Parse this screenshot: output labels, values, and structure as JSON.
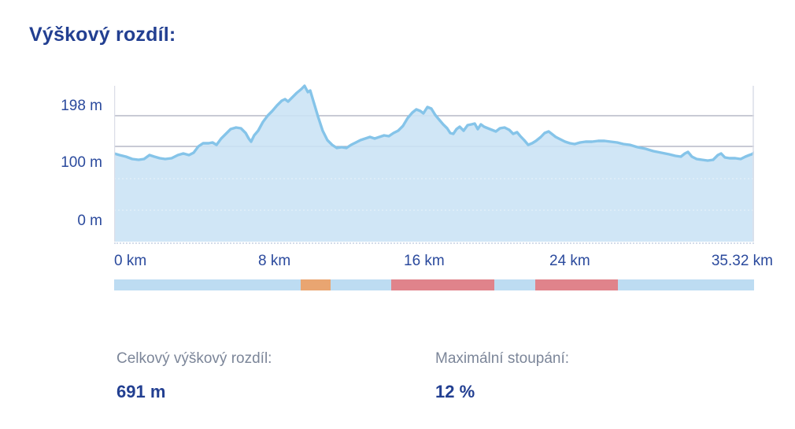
{
  "page": {
    "title": "Výškový rozdíl:"
  },
  "chart_data": {
    "type": "area",
    "title": "Výškový rozdíl:",
    "x_unit": "km",
    "y_unit": "m",
    "x_range_km": [
      0,
      35.32
    ],
    "y_range_m": [
      0,
      198
    ],
    "grid": "horizontal lines on",
    "legend": "none",
    "y_axis_labels": [
      {
        "text": "198 m",
        "value_m": 198
      },
      {
        "text": "100 m",
        "value_m": 100
      },
      {
        "text": "0 m",
        "value_m": 0
      }
    ],
    "x_axis_labels": [
      {
        "text": "0 km",
        "value_km": 0
      },
      {
        "text": "8 km",
        "value_km": 8
      },
      {
        "text": "16 km",
        "value_km": 16
      },
      {
        "text": "24 km",
        "value_km": 24
      },
      {
        "text": "35.32 km",
        "value_km": 35.32
      }
    ],
    "profile_points_km_m": [
      [
        0,
        112
      ],
      [
        0.3,
        110
      ],
      [
        0.65,
        108
      ],
      [
        1,
        105
      ],
      [
        1.35,
        104
      ],
      [
        1.65,
        105
      ],
      [
        1.95,
        110
      ],
      [
        2.22,
        108
      ],
      [
        2.52,
        106
      ],
      [
        2.82,
        105
      ],
      [
        3.17,
        106
      ],
      [
        3.52,
        110
      ],
      [
        3.82,
        112
      ],
      [
        4.13,
        110
      ],
      [
        4.39,
        113
      ],
      [
        4.65,
        121
      ],
      [
        4.91,
        125
      ],
      [
        5.21,
        125
      ],
      [
        5.43,
        126
      ],
      [
        5.65,
        123
      ],
      [
        5.91,
        131
      ],
      [
        6.17,
        137
      ],
      [
        6.43,
        143
      ],
      [
        6.73,
        145
      ],
      [
        7,
        144
      ],
      [
        7.26,
        138
      ],
      [
        7.43,
        131
      ],
      [
        7.56,
        127
      ],
      [
        7.73,
        135
      ],
      [
        7.95,
        141
      ],
      [
        8.21,
        152
      ],
      [
        8.47,
        160
      ],
      [
        8.73,
        166
      ],
      [
        8.99,
        173
      ],
      [
        9.25,
        179
      ],
      [
        9.43,
        181
      ],
      [
        9.6,
        178
      ],
      [
        9.82,
        183
      ],
      [
        10.08,
        189
      ],
      [
        10.34,
        194
      ],
      [
        10.51,
        198
      ],
      [
        10.69,
        190
      ],
      [
        10.82,
        192
      ],
      [
        11.03,
        176
      ],
      [
        11.25,
        159
      ],
      [
        11.51,
        141
      ],
      [
        11.77,
        129
      ],
      [
        12.03,
        123
      ],
      [
        12.29,
        119
      ],
      [
        12.56,
        120
      ],
      [
        12.82,
        119
      ],
      [
        13.08,
        123
      ],
      [
        13.34,
        126
      ],
      [
        13.6,
        129
      ],
      [
        13.86,
        131
      ],
      [
        14.12,
        133
      ],
      [
        14.38,
        131
      ],
      [
        14.64,
        133
      ],
      [
        14.9,
        135
      ],
      [
        15.16,
        134
      ],
      [
        15.42,
        138
      ],
      [
        15.68,
        141
      ],
      [
        15.94,
        147
      ],
      [
        16.2,
        157
      ],
      [
        16.46,
        164
      ],
      [
        16.68,
        168
      ],
      [
        16.9,
        166
      ],
      [
        17.07,
        163
      ],
      [
        17.29,
        171
      ],
      [
        17.51,
        169
      ],
      [
        17.72,
        161
      ],
      [
        17.94,
        155
      ],
      [
        18.16,
        149
      ],
      [
        18.38,
        144
      ],
      [
        18.55,
        138
      ],
      [
        18.72,
        137
      ],
      [
        18.9,
        143
      ],
      [
        19.07,
        146
      ],
      [
        19.29,
        141
      ],
      [
        19.51,
        148
      ],
      [
        19.72,
        149
      ],
      [
        19.9,
        150
      ],
      [
        20.07,
        143
      ],
      [
        20.24,
        149
      ],
      [
        20.42,
        146
      ],
      [
        20.63,
        144
      ],
      [
        20.85,
        142
      ],
      [
        21.07,
        140
      ],
      [
        21.29,
        144
      ],
      [
        21.55,
        145
      ],
      [
        21.81,
        142
      ],
      [
        22.02,
        137
      ],
      [
        22.24,
        139
      ],
      [
        22.42,
        134
      ],
      [
        22.63,
        129
      ],
      [
        22.85,
        123
      ],
      [
        23.07,
        125
      ],
      [
        23.28,
        128
      ],
      [
        23.55,
        133
      ],
      [
        23.76,
        138
      ],
      [
        23.98,
        140
      ],
      [
        24.15,
        137
      ],
      [
        24.37,
        133
      ],
      [
        24.63,
        130
      ],
      [
        24.89,
        127
      ],
      [
        25.16,
        125
      ],
      [
        25.42,
        124
      ],
      [
        25.72,
        126
      ],
      [
        26.02,
        127
      ],
      [
        26.37,
        127
      ],
      [
        26.72,
        128
      ],
      [
        27.07,
        128
      ],
      [
        27.41,
        127
      ],
      [
        27.76,
        126
      ],
      [
        28.11,
        124
      ],
      [
        28.46,
        123
      ],
      [
        28.89,
        120
      ],
      [
        29.33,
        118
      ],
      [
        29.76,
        115
      ],
      [
        30.2,
        113
      ],
      [
        30.63,
        111
      ],
      [
        30.98,
        109
      ],
      [
        31.28,
        108
      ],
      [
        31.5,
        112
      ],
      [
        31.67,
        114
      ],
      [
        31.89,
        108
      ],
      [
        32.15,
        105
      ],
      [
        32.45,
        104
      ],
      [
        32.76,
        103
      ],
      [
        33.06,
        104
      ],
      [
        33.32,
        110
      ],
      [
        33.5,
        112
      ],
      [
        33.71,
        107
      ],
      [
        33.97,
        106
      ],
      [
        34.28,
        106
      ],
      [
        34.58,
        105
      ],
      [
        34.84,
        108
      ],
      [
        35.06,
        110
      ],
      [
        35.19,
        111
      ],
      [
        35.32,
        113
      ]
    ],
    "slope_segments": [
      {
        "from_km": 0,
        "to_km": 10.3,
        "level": "normal",
        "color": "#bddcf2"
      },
      {
        "from_km": 10.3,
        "to_km": 11.95,
        "level": "moderate",
        "color": "#e9a571"
      },
      {
        "from_km": 11.95,
        "to_km": 15.29,
        "level": "normal",
        "color": "#bddcf2"
      },
      {
        "from_km": 15.29,
        "to_km": 20.98,
        "level": "steep",
        "color": "#e0838b"
      },
      {
        "from_km": 20.98,
        "to_km": 23.24,
        "level": "normal",
        "color": "#bddcf2"
      },
      {
        "from_km": 23.24,
        "to_km": 27.8,
        "level": "steep",
        "color": "#e0838b"
      },
      {
        "from_km": 27.8,
        "to_km": 35.32,
        "level": "normal",
        "color": "#bddcf2"
      }
    ],
    "colors": {
      "area_fill": "#c9e3f5",
      "line_stroke": "#85c4e9",
      "grid_solid": "#a6abbc",
      "plot_border": "#dcdee8",
      "axis_text": "#2b4a9d",
      "title_text": "#223f91",
      "stat_label_text": "#7c8699",
      "strip_normal": "#bddcf2",
      "strip_moderate": "#e9a571",
      "strip_steep": "#e0838b"
    }
  },
  "stats": [
    {
      "label": "Celkový výškový rozdíl:",
      "value": "691 m"
    },
    {
      "label": "Maximální stoupání:",
      "value": "12 %"
    }
  ]
}
